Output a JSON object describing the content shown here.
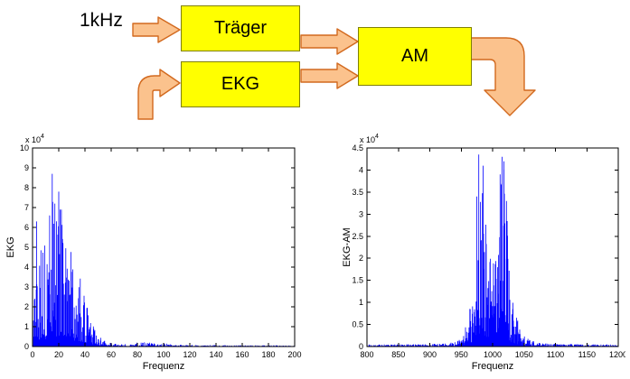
{
  "diagram": {
    "input_label": "1kHz",
    "blocks": [
      {
        "label": "Träger"
      },
      {
        "label": "EKG"
      },
      {
        "label": "AM"
      }
    ],
    "colors": {
      "block_fill": "#FFFF00",
      "block_border": "#7F7F00",
      "arrow_fill": "#FBC28D",
      "arrow_stroke": "#D2691E"
    }
  },
  "chart_data": [
    {
      "type": "line",
      "title": "",
      "xlabel": "Frequenz",
      "ylabel": "EKG",
      "scale_label": "x 10",
      "scale_exponent": "4",
      "xlim": [
        0,
        200
      ],
      "ylim": [
        0,
        10
      ],
      "xticks": [
        0,
        20,
        40,
        60,
        80,
        100,
        120,
        140,
        160,
        180,
        200
      ],
      "yticks": [
        0,
        1,
        2,
        3,
        4,
        5,
        6,
        7,
        8,
        9,
        10
      ],
      "grid": false,
      "legend": null,
      "line_color": "#0000FF",
      "seed": 13,
      "samples": 560,
      "envelope": [
        [
          0,
          0.3
        ],
        [
          1,
          2.0
        ],
        [
          3,
          6.3
        ],
        [
          5,
          4.5
        ],
        [
          7,
          5.5
        ],
        [
          10,
          5.0
        ],
        [
          13,
          6.5
        ],
        [
          15,
          8.7
        ],
        [
          17,
          6.0
        ],
        [
          20,
          7.8
        ],
        [
          22,
          6.5
        ],
        [
          25,
          5.0
        ],
        [
          28,
          5.5
        ],
        [
          30,
          4.5
        ],
        [
          33,
          3.5
        ],
        [
          36,
          3.8
        ],
        [
          40,
          2.5
        ],
        [
          44,
          1.5
        ],
        [
          48,
          0.8
        ],
        [
          52,
          0.45
        ],
        [
          56,
          0.25
        ],
        [
          60,
          0.18
        ],
        [
          65,
          0.12
        ],
        [
          70,
          0.12
        ],
        [
          75,
          0.16
        ],
        [
          80,
          0.2
        ],
        [
          85,
          0.22
        ],
        [
          90,
          0.2
        ],
        [
          95,
          0.18
        ],
        [
          100,
          0.16
        ],
        [
          105,
          0.12
        ],
        [
          110,
          0.1
        ],
        [
          120,
          0.08
        ],
        [
          140,
          0.07
        ],
        [
          160,
          0.06
        ],
        [
          180,
          0.06
        ],
        [
          200,
          0.05
        ]
      ],
      "peaks": [
        [
          3,
          6.3
        ],
        [
          13,
          6.6
        ],
        [
          15,
          8.7
        ],
        [
          17,
          7.2
        ],
        [
          20,
          7.8
        ],
        [
          22,
          6.9
        ]
      ]
    },
    {
      "type": "line",
      "title": "",
      "xlabel": "Frequenz",
      "ylabel": "EKG-AM",
      "scale_label": "x 10",
      "scale_exponent": "4",
      "xlim": [
        800,
        1200
      ],
      "ylim": [
        0,
        4.5
      ],
      "xticks": [
        800,
        850,
        900,
        950,
        1000,
        1050,
        1100,
        1150,
        1200
      ],
      "yticks": [
        0,
        0.5,
        1,
        1.5,
        2,
        2.5,
        3,
        3.5,
        4,
        4.5
      ],
      "grid": false,
      "legend": null,
      "line_color": "#0000FF",
      "seed": 29,
      "samples": 640,
      "envelope": [
        [
          800,
          0.05
        ],
        [
          880,
          0.05
        ],
        [
          900,
          0.06
        ],
        [
          920,
          0.07
        ],
        [
          940,
          0.1
        ],
        [
          950,
          0.2
        ],
        [
          955,
          0.35
        ],
        [
          960,
          0.6
        ],
        [
          965,
          1.0
        ],
        [
          970,
          1.6
        ],
        [
          975,
          2.8
        ],
        [
          978,
          4.35
        ],
        [
          982,
          3.2
        ],
        [
          985,
          4.3
        ],
        [
          988,
          3.0
        ],
        [
          992,
          2.4
        ],
        [
          996,
          2.2
        ],
        [
          1000,
          2.1
        ],
        [
          1004,
          2.3
        ],
        [
          1008,
          2.6
        ],
        [
          1012,
          4.3
        ],
        [
          1015,
          3.6
        ],
        [
          1018,
          4.25
        ],
        [
          1022,
          3.2
        ],
        [
          1026,
          2.2
        ],
        [
          1030,
          1.4
        ],
        [
          1035,
          0.9
        ],
        [
          1040,
          0.6
        ],
        [
          1045,
          0.4
        ],
        [
          1050,
          0.25
        ],
        [
          1060,
          0.14
        ],
        [
          1070,
          0.1
        ],
        [
          1080,
          0.08
        ],
        [
          1100,
          0.06
        ],
        [
          1150,
          0.05
        ],
        [
          1200,
          0.05
        ]
      ],
      "peaks": [
        [
          975,
          3.4
        ],
        [
          978,
          4.35
        ],
        [
          985,
          4.1
        ],
        [
          1012,
          3.9
        ],
        [
          1015,
          4.3
        ],
        [
          1018,
          4.2
        ],
        [
          1022,
          3.3
        ]
      ]
    }
  ]
}
